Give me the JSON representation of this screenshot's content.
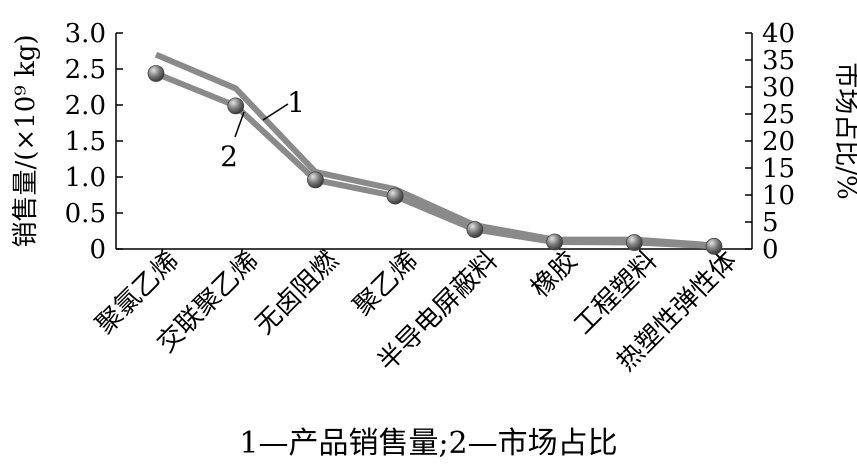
{
  "chart_data": {
    "type": "line",
    "categories": [
      "聚氯乙烯",
      "交联聚乙烯",
      "无卤阻燃",
      "聚乙烯",
      "半导电屏蔽料",
      "橡胶",
      "工程塑料",
      "热塑性弹性体"
    ],
    "series": [
      {
        "name": "产品销售量",
        "label": "1",
        "axis": "left",
        "values": [
          2.7,
          2.23,
          1.07,
          0.83,
          0.33,
          0.13,
          0.13,
          0.05
        ]
      },
      {
        "name": "市场占比",
        "label": "2",
        "axis": "right",
        "values": [
          32.5,
          26.5,
          12.8,
          9.8,
          3.6,
          1.3,
          1.2,
          0.5
        ]
      }
    ],
    "ylabel": "销售量/(×10⁹ kg)",
    "y2label": "市场占比/%",
    "ylim": [
      0,
      3.0
    ],
    "y2lim": [
      0,
      40
    ],
    "yticks": [
      "3.0",
      "2.5",
      "2.0",
      "1.5",
      "1.0",
      "0.5",
      "0"
    ],
    "y2ticks": [
      "40",
      "35",
      "30",
      "25",
      "20",
      "15",
      "10",
      "5",
      "0"
    ],
    "grid": false,
    "colors": {
      "line": "#8a8a8a",
      "marker": "#6e6e6e",
      "marker_highlight": "#d8d8d8",
      "axis": "#000000"
    }
  },
  "caption": "1—产品销售量;2—市场占比"
}
